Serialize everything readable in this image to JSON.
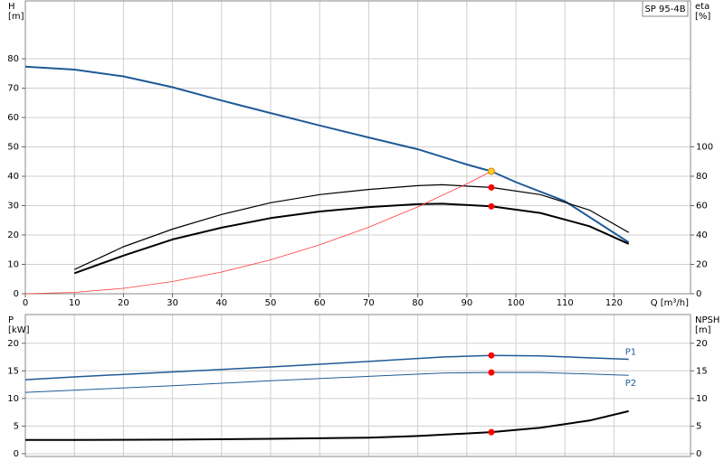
{
  "chart_data": [
    {
      "type": "line",
      "title": "SP 95-4B",
      "xlabel": "Q [m³/h]",
      "ylabel": [
        "H",
        "[m]"
      ],
      "y2label": [
        "eta",
        "[%]"
      ],
      "xlim": [
        0,
        135.6
      ],
      "xticks": [
        0,
        10,
        20,
        30,
        40,
        50,
        60,
        70,
        80,
        90,
        100,
        110,
        120
      ],
      "ylim": [
        0,
        99.7
      ],
      "yticks": [
        0,
        10,
        20,
        30,
        40,
        50,
        60,
        70,
        80
      ],
      "y2lim": [
        0,
        199.4
      ],
      "y2ticks": [
        0,
        20,
        40,
        60,
        80,
        100
      ],
      "grid": true,
      "series": [
        {
          "color": "#1f5a96",
          "width": 2,
          "x": [
            0,
            10,
            20,
            30,
            40,
            50,
            60,
            70,
            80,
            90,
            95,
            100,
            110,
            123
          ],
          "values": [
            77.3,
            76.3,
            74,
            70.3,
            65.8,
            61.5,
            57.3,
            53.2,
            49.2,
            44,
            41.7,
            38,
            31.5,
            17.5
          ]
        },
        {
          "color": "#000000",
          "width": 1.2,
          "axis": "y2",
          "x": [
            10,
            20,
            30,
            40,
            50,
            60,
            70,
            80,
            85,
            95,
            105,
            115,
            123
          ],
          "values": [
            16.5,
            32,
            44,
            54,
            62,
            67.5,
            71,
            73.6,
            74.2,
            72.4,
            67.5,
            57,
            41.7
          ]
        },
        {
          "color": "#000000",
          "width": 2,
          "axis": "y2",
          "x": [
            10,
            20,
            30,
            40,
            50,
            60,
            70,
            80,
            85,
            95,
            105,
            115,
            123
          ],
          "values": [
            14,
            26,
            37,
            45,
            51.5,
            56,
            59,
            61,
            61.3,
            59.5,
            55,
            46,
            34
          ]
        },
        {
          "color": "#ff3b3b",
          "width": 0.8,
          "x": [
            0,
            10,
            20,
            30,
            40,
            50,
            60,
            70,
            80,
            90,
            95
          ],
          "values": [
            0,
            0.46,
            1.85,
            4.16,
            7.39,
            11.55,
            16.64,
            22.64,
            29.57,
            37.43,
            41.7
          ]
        },
        {
          "style": "points",
          "color": "#ffcc33",
          "x": [
            95
          ],
          "values": [
            41.7
          ]
        },
        {
          "style": "points",
          "color": "#ff0000",
          "axis": "y2",
          "x": [
            95,
            95
          ],
          "values": [
            72.4,
            59.5
          ]
        }
      ]
    },
    {
      "type": "line",
      "ylabel": [
        "P",
        "[kW]"
      ],
      "y2label": [
        "NPSH",
        "[m]"
      ],
      "xlim": [
        0,
        135.6
      ],
      "ylim": [
        -0.5,
        25.2
      ],
      "yticks": [
        0,
        5,
        10,
        15,
        20
      ],
      "y2lim": [
        -0.5,
        25.2
      ],
      "y2ticks": [
        0,
        5,
        10,
        15,
        20
      ],
      "grid": true,
      "series": [
        {
          "name": "P1",
          "color": "#1f5a96",
          "width": 1.5,
          "x": [
            0,
            10,
            30,
            50,
            70,
            85,
            95,
            105,
            123
          ],
          "values": [
            13.4,
            13.9,
            14.8,
            15.7,
            16.7,
            17.5,
            17.8,
            17.7,
            17.1
          ]
        },
        {
          "name": "P2",
          "color": "#1f5a96",
          "width": 1,
          "x": [
            0,
            30,
            50,
            70,
            85,
            95,
            105,
            123
          ],
          "values": [
            11.1,
            12.3,
            13.2,
            14.0,
            14.6,
            14.7,
            14.7,
            14.2
          ]
        },
        {
          "color": "#000000",
          "width": 2,
          "axis": "y2",
          "x": [
            0,
            10,
            30,
            50,
            70,
            80,
            95,
            105,
            115,
            123
          ],
          "values": [
            2.5,
            2.5,
            2.55,
            2.7,
            2.9,
            3.2,
            3.9,
            4.7,
            6.0,
            7.7
          ]
        },
        {
          "style": "points",
          "color": "#ff0000",
          "x": [
            95,
            95
          ],
          "values": [
            17.8,
            14.7
          ]
        },
        {
          "style": "points",
          "color": "#ff0000",
          "axis": "y2",
          "x": [
            95
          ],
          "values": [
            3.9
          ]
        }
      ]
    }
  ]
}
